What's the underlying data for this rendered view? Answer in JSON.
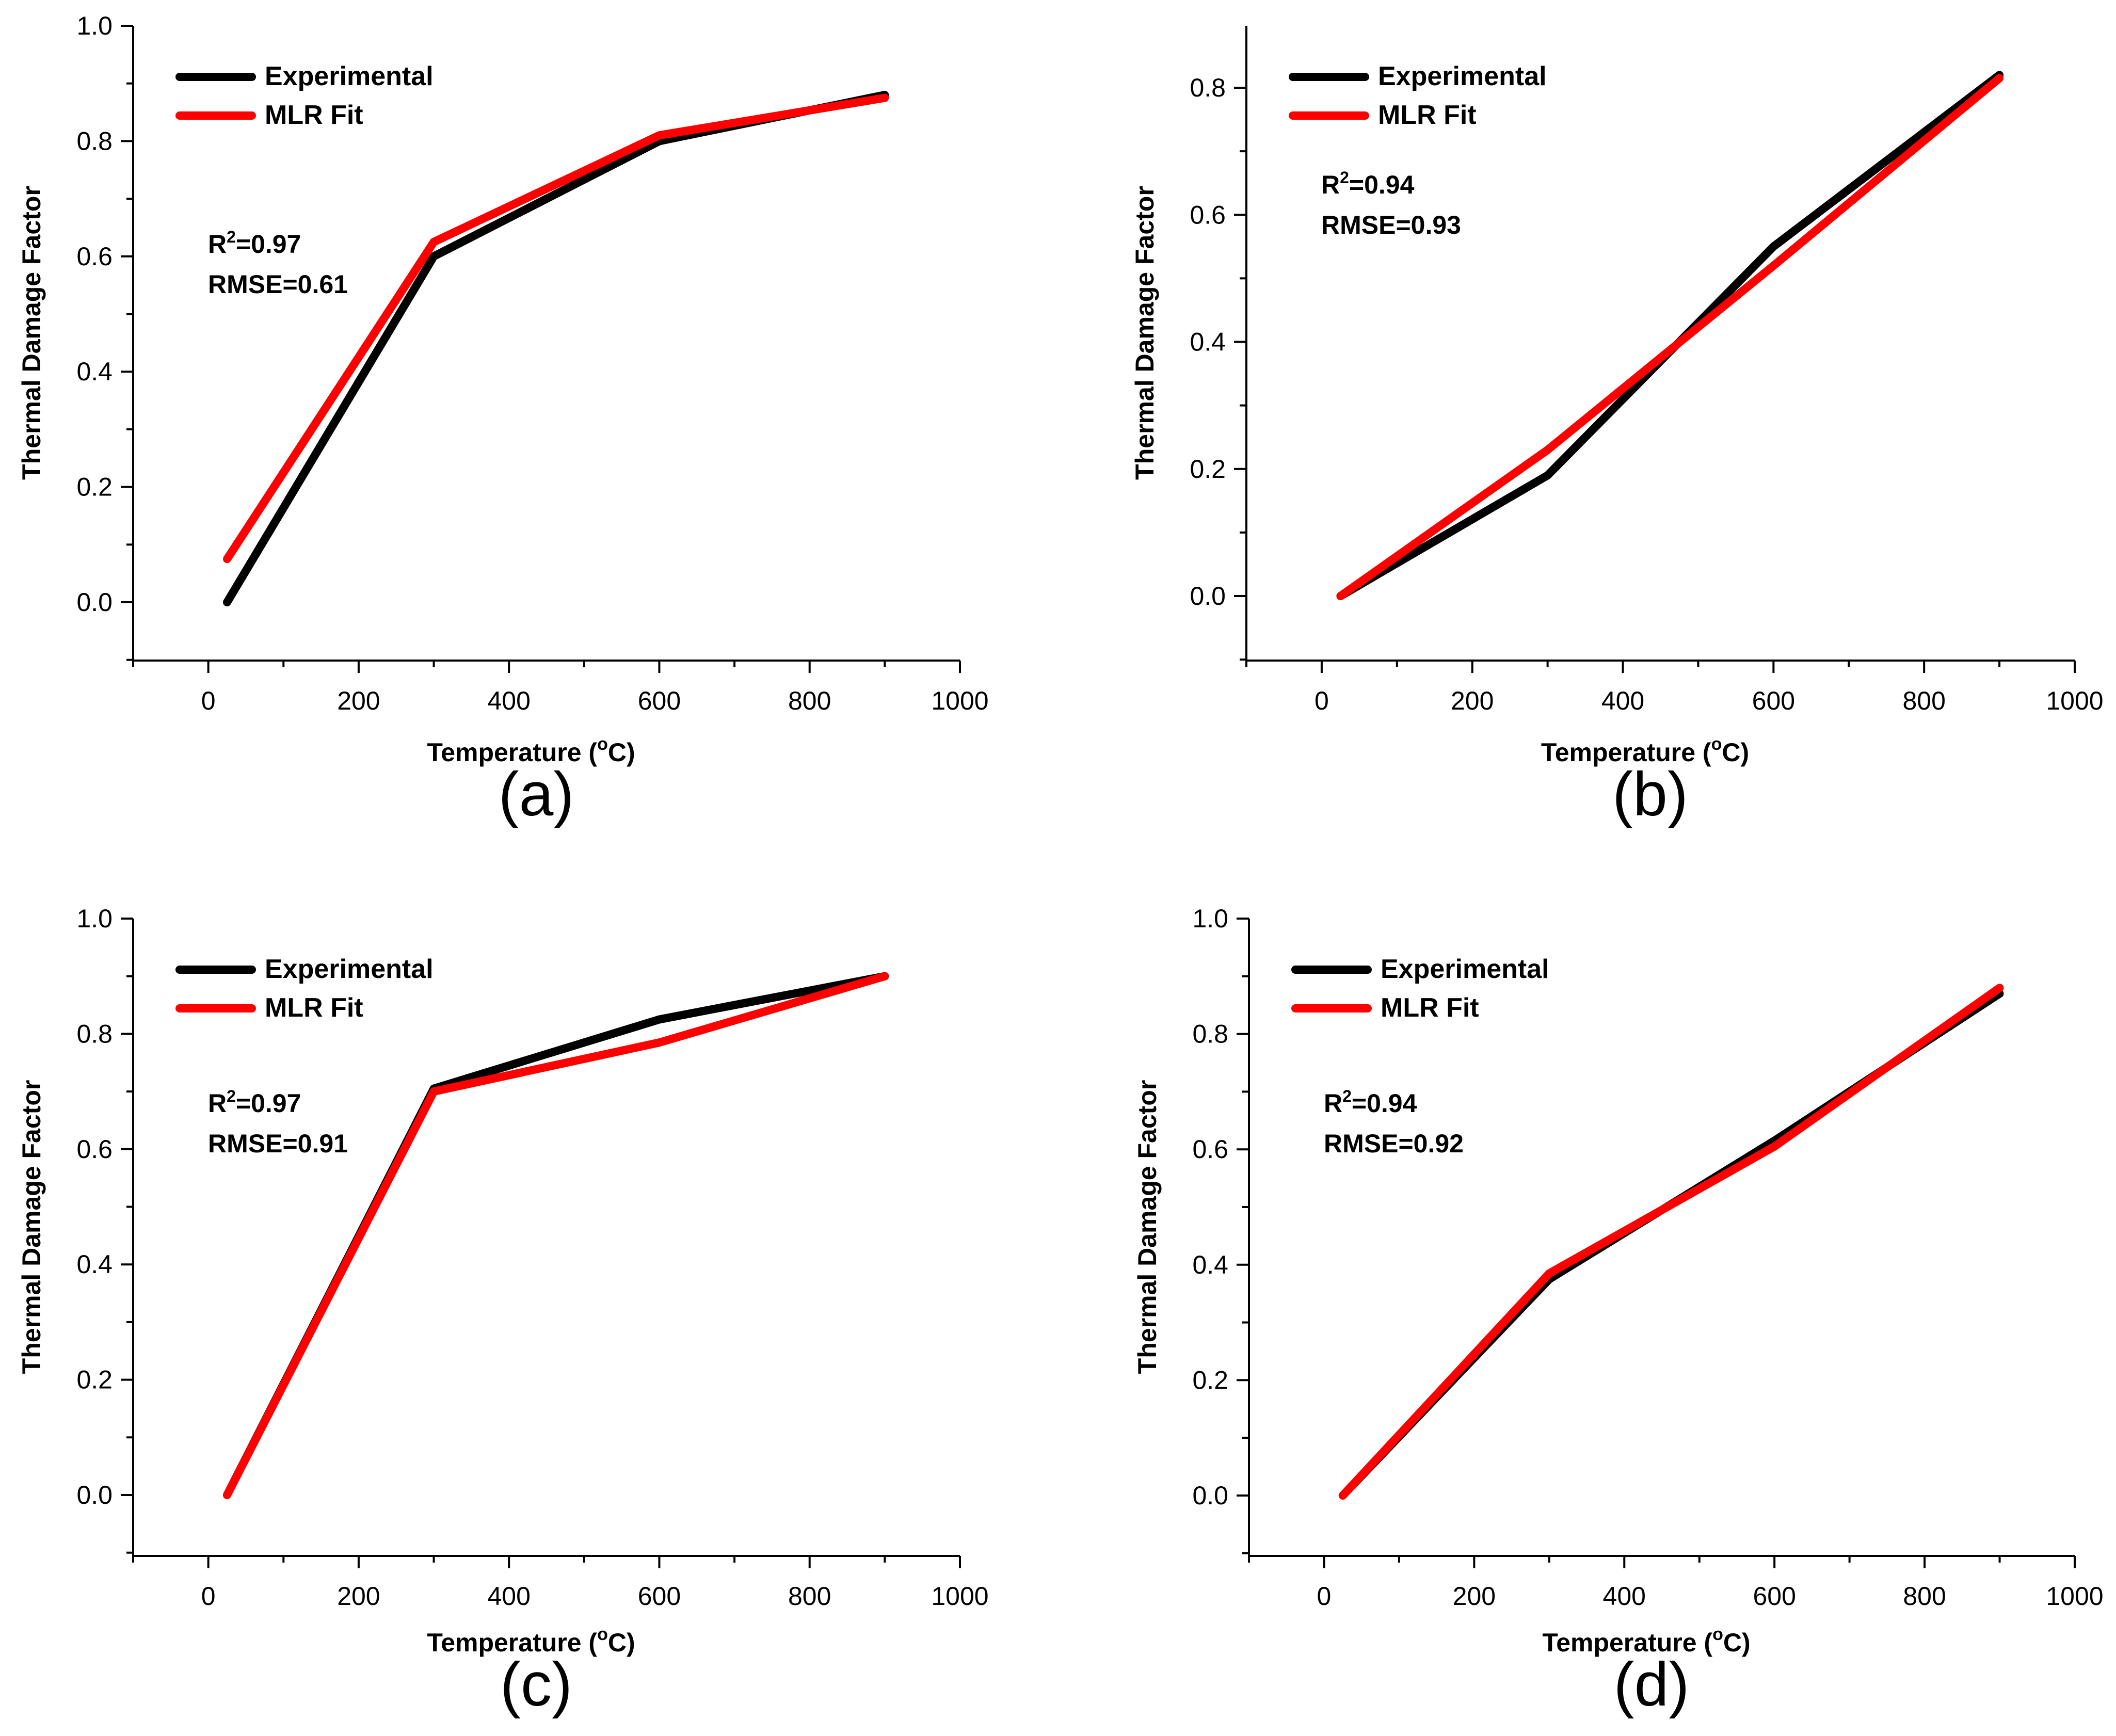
{
  "chart_data": [
    {
      "type": "line",
      "panel_label": "(a)",
      "xlabel": "Temperature (",
      "xlabel_sup": "o",
      "xlabel_suffix": "C)",
      "ylabel": "Thermal Damage Factor",
      "xlim": [
        -100,
        1000
      ],
      "ylim": [
        -0.1,
        1.0
      ],
      "xticks": [
        0,
        200,
        400,
        600,
        800,
        1000
      ],
      "xtick_labels": [
        "0",
        "200",
        "400",
        "600",
        "800",
        "1000"
      ],
      "yticks": [
        0.0,
        0.2,
        0.4,
        0.6,
        0.8,
        1.0
      ],
      "ytick_labels": [
        "0.0",
        "0.2",
        "0.4",
        "0.6",
        "0.8",
        "1.0"
      ],
      "legend_position": "top-left",
      "grid": false,
      "series": [
        {
          "name": "Experimental",
          "color": "#000000",
          "x": [
            25,
            300,
            600,
            900
          ],
          "y": [
            0.0,
            0.6,
            0.8,
            0.88
          ]
        },
        {
          "name": "MLR Fit",
          "color": "#ff0000",
          "x": [
            25,
            300,
            600,
            900
          ],
          "y": [
            0.075,
            0.625,
            0.81,
            0.875
          ]
        }
      ],
      "stats": {
        "r2_prefix": "R",
        "r2_sup": "2",
        "r2_value": "=0.97",
        "rmse": "RMSE=0.61"
      }
    },
    {
      "type": "line",
      "panel_label": "(b)",
      "xlabel": "Temperature (",
      "xlabel_sup": "o",
      "xlabel_suffix": "C)",
      "ylabel": "Thermal Damage Factor",
      "xlim": [
        -100,
        1000
      ],
      "ylim": [
        -0.1,
        0.9
      ],
      "xticks": [
        0,
        200,
        400,
        600,
        800,
        1000
      ],
      "xtick_labels": [
        "0",
        "200",
        "400",
        "600",
        "800",
        "1000"
      ],
      "yticks": [
        0.0,
        0.2,
        0.4,
        0.6,
        0.8
      ],
      "ytick_labels": [
        "0.0",
        "0.2",
        "0.4",
        "0.6",
        "0.8"
      ],
      "legend_position": "top-left",
      "grid": false,
      "series": [
        {
          "name": "Experimental",
          "color": "#000000",
          "x": [
            25,
            300,
            600,
            900
          ],
          "y": [
            0.0,
            0.19,
            0.55,
            0.82
          ]
        },
        {
          "name": "MLR Fit",
          "color": "#ff0000",
          "x": [
            25,
            300,
            600,
            900
          ],
          "y": [
            0.0,
            0.23,
            0.52,
            0.815
          ]
        }
      ],
      "stats": {
        "r2_prefix": "R",
        "r2_sup": "2",
        "r2_value": "=0.94",
        "rmse": "RMSE=0.93"
      }
    },
    {
      "type": "line",
      "panel_label": "(c)",
      "xlabel": "Temperature (",
      "xlabel_sup": "o",
      "xlabel_suffix": "C)",
      "ylabel": "Thermal Damage Factor",
      "xlim": [
        -100,
        1000
      ],
      "ylim": [
        -0.1,
        1.0
      ],
      "xticks": [
        0,
        200,
        400,
        600,
        800,
        1000
      ],
      "xtick_labels": [
        "0",
        "200",
        "400",
        "600",
        "800",
        "1000"
      ],
      "yticks": [
        0.0,
        0.2,
        0.4,
        0.6,
        0.8,
        1.0
      ],
      "ytick_labels": [
        "0.0",
        "0.2",
        "0.4",
        "0.6",
        "0.8",
        "1.0"
      ],
      "legend_position": "top-left",
      "grid": false,
      "series": [
        {
          "name": "Experimental",
          "color": "#000000",
          "x": [
            25,
            300,
            600,
            900
          ],
          "y": [
            0.0,
            0.705,
            0.825,
            0.9
          ]
        },
        {
          "name": "MLR Fit",
          "color": "#ff0000",
          "x": [
            25,
            300,
            600,
            900
          ],
          "y": [
            0.0,
            0.7,
            0.785,
            0.9
          ]
        }
      ],
      "stats": {
        "r2_prefix": "R",
        "r2_sup": "2",
        "r2_value": "=0.97",
        "rmse": "RMSE=0.91"
      }
    },
    {
      "type": "line",
      "panel_label": "(d)",
      "xlabel": "Temperature (",
      "xlabel_sup": "o",
      "xlabel_suffix": "C)",
      "ylabel": "Thermal Damage Factor",
      "xlim": [
        -100,
        1000
      ],
      "ylim": [
        -0.1,
        1.0
      ],
      "xticks": [
        0,
        200,
        400,
        600,
        800,
        1000
      ],
      "xtick_labels": [
        "0",
        "200",
        "400",
        "600",
        "800",
        "1000"
      ],
      "yticks": [
        0.0,
        0.2,
        0.4,
        0.6,
        0.8,
        1.0
      ],
      "ytick_labels": [
        "0.0",
        "0.2",
        "0.4",
        "0.6",
        "0.8",
        "1.0"
      ],
      "legend_position": "top-left",
      "grid": false,
      "series": [
        {
          "name": "Experimental",
          "color": "#000000",
          "x": [
            25,
            300,
            600,
            900
          ],
          "y": [
            0.0,
            0.375,
            0.615,
            0.87
          ]
        },
        {
          "name": "MLR Fit",
          "color": "#ff0000",
          "x": [
            25,
            300,
            600,
            900
          ],
          "y": [
            0.0,
            0.385,
            0.605,
            0.88
          ]
        }
      ],
      "stats": {
        "r2_prefix": "R",
        "r2_sup": "2",
        "r2_value": "=0.94",
        "rmse": "RMSE=0.92"
      }
    }
  ]
}
